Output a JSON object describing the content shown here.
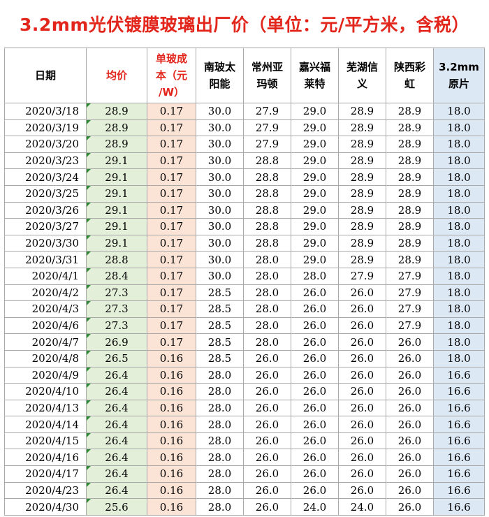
{
  "title": "3.2mm光伏镀膜玻璃出厂价（单位：元/平方米，含税）",
  "headers": {
    "date": "日期",
    "avg": "均价",
    "cost": [
      "单玻成",
      "本（元",
      "/W）"
    ],
    "nanbo": [
      "南玻太",
      "阳能"
    ],
    "changzhou": [
      "常州亚",
      "玛顿"
    ],
    "jiaxing": [
      "嘉兴福",
      "莱特"
    ],
    "wuhu": [
      "芜湖信",
      "义"
    ],
    "shaanxi": [
      "陕西彩",
      "虹"
    ],
    "raw": [
      "3.2mm",
      "原片"
    ]
  },
  "colors": {
    "title": "#e2261c",
    "avg_bg": "#e3efd8",
    "cost_bg": "#fbe3d5",
    "raw_bg": "#dde8f5"
  },
  "rows": [
    [
      "2020/3/18",
      "28.9",
      "0.17",
      "30.0",
      "27.9",
      "29.0",
      "28.9",
      "28.9",
      "18.0"
    ],
    [
      "2020/3/19",
      "28.9",
      "0.17",
      "30.0",
      "27.9",
      "29.0",
      "28.9",
      "28.9",
      "18.0"
    ],
    [
      "2020/3/20",
      "28.9",
      "0.17",
      "30.0",
      "27.9",
      "29.0",
      "28.9",
      "28.9",
      "18.0"
    ],
    [
      "2020/3/23",
      "29.1",
      "0.17",
      "30.0",
      "28.8",
      "29.0",
      "28.9",
      "28.9",
      "18.0"
    ],
    [
      "2020/3/24",
      "29.1",
      "0.17",
      "30.0",
      "28.8",
      "29.0",
      "28.9",
      "28.9",
      "18.0"
    ],
    [
      "2020/3/25",
      "29.1",
      "0.17",
      "30.0",
      "28.8",
      "29.0",
      "28.9",
      "28.9",
      "18.0"
    ],
    [
      "2020/3/26",
      "29.1",
      "0.17",
      "30.0",
      "28.8",
      "29.0",
      "28.9",
      "28.9",
      "18.0"
    ],
    [
      "2020/3/27",
      "29.1",
      "0.17",
      "30.0",
      "28.8",
      "29.0",
      "28.9",
      "28.9",
      "18.0"
    ],
    [
      "2020/3/30",
      "29.1",
      "0.17",
      "30.0",
      "28.8",
      "29.0",
      "28.9",
      "28.9",
      "18.0"
    ],
    [
      "2020/3/31",
      "28.8",
      "0.17",
      "30.0",
      "28.0",
      "29.0",
      "28.9",
      "28.9",
      "18.0"
    ],
    [
      "2020/4/1",
      "28.4",
      "0.17",
      "30.0",
      "28.0",
      "28.0",
      "27.9",
      "27.9",
      "18.0"
    ],
    [
      "2020/4/2",
      "27.3",
      "0.17",
      "28.5",
      "28.0",
      "26.0",
      "26.0",
      "27.9",
      "18.0"
    ],
    [
      "2020/4/3",
      "27.3",
      "0.17",
      "28.5",
      "28.0",
      "26.0",
      "26.0",
      "27.9",
      "18.0"
    ],
    [
      "2020/4/6",
      "27.3",
      "0.17",
      "28.5",
      "28.0",
      "26.0",
      "26.0",
      "27.9",
      "18.0"
    ],
    [
      "2020/4/7",
      "26.9",
      "0.17",
      "28.5",
      "28.0",
      "26.0",
      "26.0",
      "26.0",
      "18.0"
    ],
    [
      "2020/4/8",
      "26.5",
      "0.16",
      "28.5",
      "26.0",
      "26.0",
      "26.0",
      "26.0",
      "18.0"
    ],
    [
      "2020/4/9",
      "26.4",
      "0.16",
      "28.0",
      "26.0",
      "26.0",
      "26.0",
      "26.0",
      "16.6"
    ],
    [
      "2020/4/10",
      "26.4",
      "0.16",
      "28.0",
      "26.0",
      "26.0",
      "26.0",
      "26.0",
      "16.6"
    ],
    [
      "2020/4/13",
      "26.4",
      "0.16",
      "28.0",
      "26.0",
      "26.0",
      "26.0",
      "26.0",
      "16.6"
    ],
    [
      "2020/4/14",
      "26.4",
      "0.16",
      "28.0",
      "26.0",
      "26.0",
      "26.0",
      "26.0",
      "16.6"
    ],
    [
      "2020/4/15",
      "26.4",
      "0.16",
      "28.0",
      "26.0",
      "26.0",
      "26.0",
      "26.0",
      "16.6"
    ],
    [
      "2020/4/16",
      "26.4",
      "0.16",
      "28.0",
      "26.0",
      "26.0",
      "26.0",
      "26.0",
      "16.6"
    ],
    [
      "2020/4/17",
      "26.4",
      "0.16",
      "28.0",
      "26.0",
      "26.0",
      "26.0",
      "26.0",
      "16.6"
    ],
    [
      "2020/4/23",
      "26.4",
      "0.16",
      "28.0",
      "26.0",
      "26.0",
      "26.0",
      "26.0",
      "16.6"
    ],
    [
      "2020/4/30",
      "25.6",
      "0.16",
      "28.0",
      "26.0",
      "24.0",
      "24.0",
      "26.0",
      "16.6"
    ]
  ]
}
